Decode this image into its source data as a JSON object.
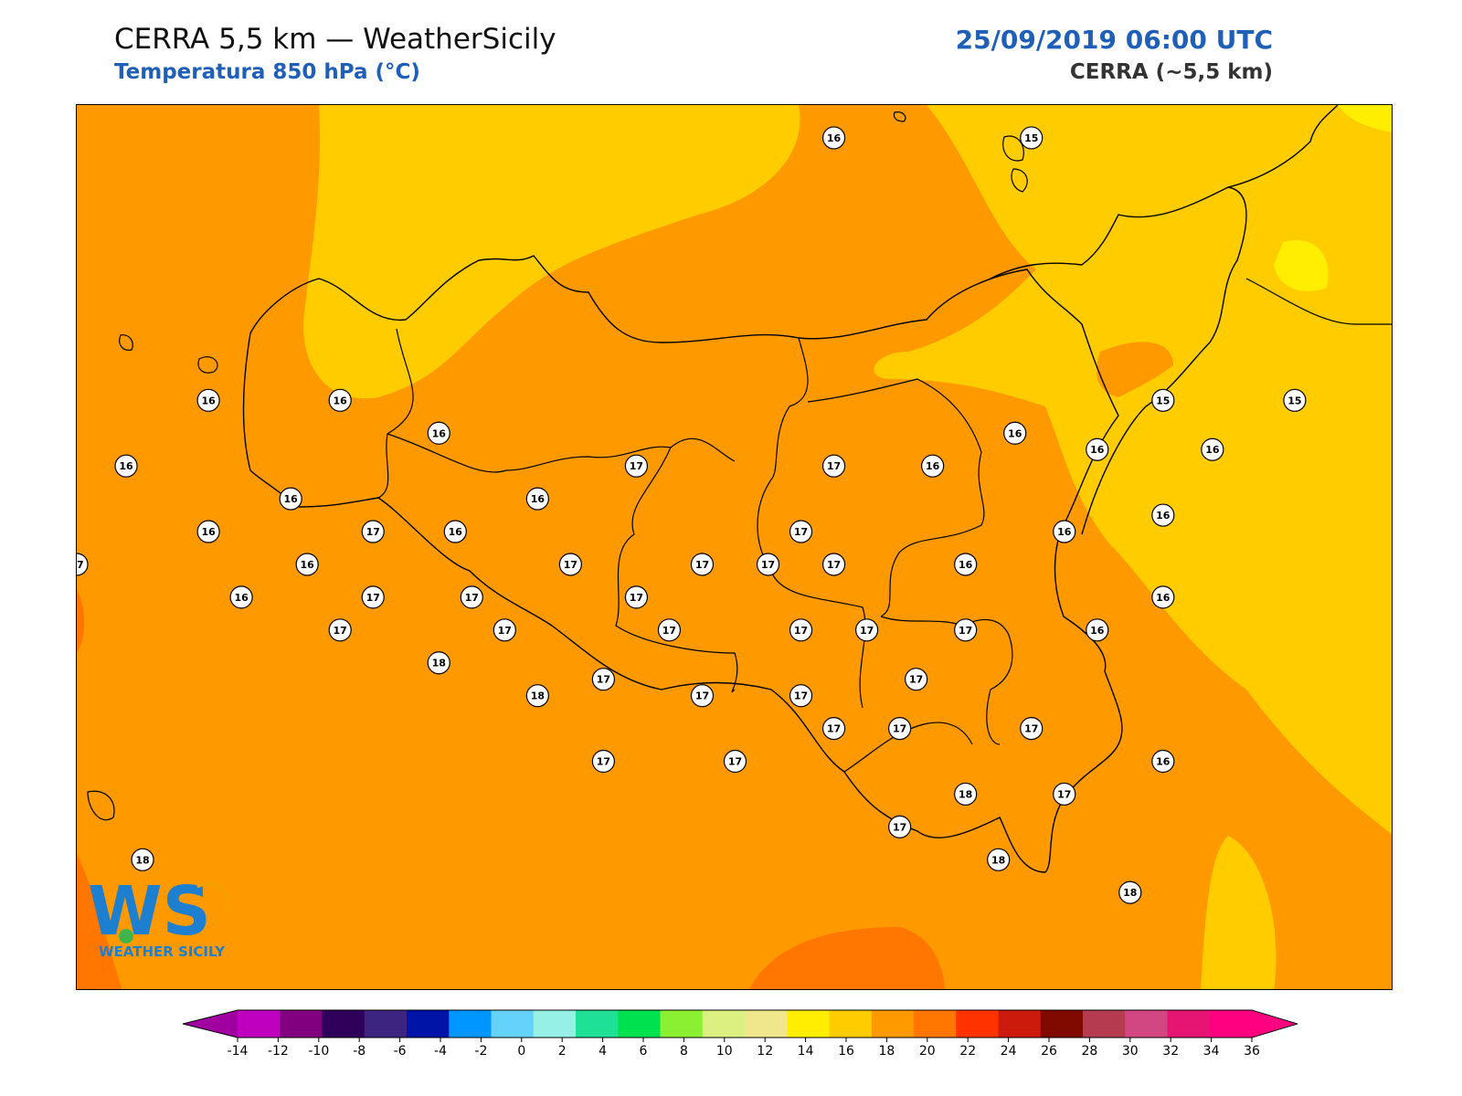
{
  "header": {
    "title": "CERRA 5,5 km — WeatherSicily",
    "subtitle": "Temperatura 850 hPa (°C)",
    "datetime": "25/09/2019 06:00 UTC",
    "model": "CERRA (~5,5 km)"
  },
  "logo": {
    "letters": "WS",
    "text": "WEATHER SICILY",
    "icon": "weather-sicily-logo-icon"
  },
  "colors": {
    "orange_18": "#ff9900",
    "gold_16": "#ffcc00",
    "yellow_14": "#ffee00",
    "deep_orange_20": "#ff7700",
    "accent_blue": "#1f5fb8"
  },
  "map": {
    "labels": [
      {
        "value": "16",
        "lon": 14.0,
        "lat": 39.0
      },
      {
        "value": "15",
        "lon": 14.6,
        "lat": 39.0
      },
      {
        "value": "16",
        "lon": 12.1,
        "lat": 38.2
      },
      {
        "value": "16",
        "lon": 12.5,
        "lat": 38.2
      },
      {
        "value": "16",
        "lon": 12.8,
        "lat": 38.1
      },
      {
        "value": "16",
        "lon": 11.85,
        "lat": 38.0
      },
      {
        "value": "16",
        "lon": 12.35,
        "lat": 37.9
      },
      {
        "value": "16",
        "lon": 13.1,
        "lat": 37.9
      },
      {
        "value": "16",
        "lon": 12.1,
        "lat": 37.8
      },
      {
        "value": "16",
        "lon": 12.85,
        "lat": 37.8
      },
      {
        "value": "17",
        "lon": 11.7,
        "lat": 37.7
      },
      {
        "value": "17",
        "lon": 12.6,
        "lat": 37.8
      },
      {
        "value": "17",
        "lon": 13.4,
        "lat": 38.0
      },
      {
        "value": "17",
        "lon": 13.6,
        "lat": 37.7
      },
      {
        "value": "17",
        "lon": 13.9,
        "lat": 37.8
      },
      {
        "value": "17",
        "lon": 14.0,
        "lat": 38.0
      },
      {
        "value": "16",
        "lon": 14.3,
        "lat": 38.0
      },
      {
        "value": "16",
        "lon": 14.55,
        "lat": 38.1
      },
      {
        "value": "16",
        "lon": 14.8,
        "lat": 38.05
      },
      {
        "value": "16",
        "lon": 15.15,
        "lat": 38.05
      },
      {
        "value": "15",
        "lon": 15.0,
        "lat": 38.2
      },
      {
        "value": "15",
        "lon": 15.4,
        "lat": 38.2
      },
      {
        "value": "16",
        "lon": 15.0,
        "lat": 37.85
      },
      {
        "value": "16",
        "lon": 14.7,
        "lat": 37.8
      },
      {
        "value": "16",
        "lon": 14.4,
        "lat": 37.7
      },
      {
        "value": "16",
        "lon": 15.0,
        "lat": 37.6
      },
      {
        "value": "16",
        "lon": 12.2,
        "lat": 37.6
      },
      {
        "value": "16",
        "lon": 12.4,
        "lat": 37.7
      },
      {
        "value": "17",
        "lon": 12.6,
        "lat": 37.6
      },
      {
        "value": "17",
        "lon": 13.2,
        "lat": 37.7
      },
      {
        "value": "17",
        "lon": 13.8,
        "lat": 37.7
      },
      {
        "value": "17",
        "lon": 14.0,
        "lat": 37.7
      },
      {
        "value": "17",
        "lon": 12.9,
        "lat": 37.6
      },
      {
        "value": "17",
        "lon": 13.4,
        "lat": 37.6
      },
      {
        "value": "17",
        "lon": 12.5,
        "lat": 37.5
      },
      {
        "value": "17",
        "lon": 13.0,
        "lat": 37.5
      },
      {
        "value": "17",
        "lon": 13.5,
        "lat": 37.5
      },
      {
        "value": "17",
        "lon": 13.9,
        "lat": 37.5
      },
      {
        "value": "17",
        "lon": 14.1,
        "lat": 37.5
      },
      {
        "value": "17",
        "lon": 14.4,
        "lat": 37.5
      },
      {
        "value": "16",
        "lon": 14.8,
        "lat": 37.5
      },
      {
        "value": "18",
        "lon": 12.8,
        "lat": 37.4
      },
      {
        "value": "18",
        "lon": 13.1,
        "lat": 37.3
      },
      {
        "value": "17",
        "lon": 13.3,
        "lat": 37.35
      },
      {
        "value": "17",
        "lon": 13.6,
        "lat": 37.3
      },
      {
        "value": "17",
        "lon": 13.9,
        "lat": 37.3
      },
      {
        "value": "17",
        "lon": 14.25,
        "lat": 37.35
      },
      {
        "value": "17",
        "lon": 14.0,
        "lat": 37.2
      },
      {
        "value": "17",
        "lon": 14.2,
        "lat": 37.2
      },
      {
        "value": "17",
        "lon": 14.6,
        "lat": 37.2
      },
      {
        "value": "16",
        "lon": 15.0,
        "lat": 37.1
      },
      {
        "value": "17",
        "lon": 13.3,
        "lat": 37.1
      },
      {
        "value": "17",
        "lon": 13.7,
        "lat": 37.1
      },
      {
        "value": "17",
        "lon": 14.2,
        "lat": 36.9
      },
      {
        "value": "18",
        "lon": 14.4,
        "lat": 37.0
      },
      {
        "value": "17",
        "lon": 14.7,
        "lat": 37.0
      },
      {
        "value": "18",
        "lon": 14.5,
        "lat": 36.8
      },
      {
        "value": "18",
        "lon": 14.9,
        "lat": 36.7
      },
      {
        "value": "18",
        "lon": 11.9,
        "lat": 36.8
      }
    ]
  },
  "colorbar": {
    "ticks": [
      "-14",
      "-12",
      "-10",
      "-8",
      "-6",
      "-4",
      "-2",
      "0",
      "2",
      "4",
      "6",
      "8",
      "10",
      "12",
      "14",
      "16",
      "18",
      "20",
      "22",
      "24",
      "26",
      "28",
      "30",
      "32",
      "34",
      "36"
    ],
    "colors": [
      "#bf00bf",
      "#800080",
      "#2e0059",
      "#3c2480",
      "#0014a8",
      "#0096ff",
      "#64d2fa",
      "#96f0e6",
      "#1ee196",
      "#00e150",
      "#8cf032",
      "#dcf082",
      "#f0e68c",
      "#ffee00",
      "#ffcc00",
      "#ff9900",
      "#ff7700",
      "#ff3300",
      "#cc1a0d",
      "#800a00",
      "#b53c50",
      "#d24682",
      "#e61473",
      "#ff0080"
    ],
    "low_color": "#9f009f",
    "high_color": "#ff0080"
  }
}
